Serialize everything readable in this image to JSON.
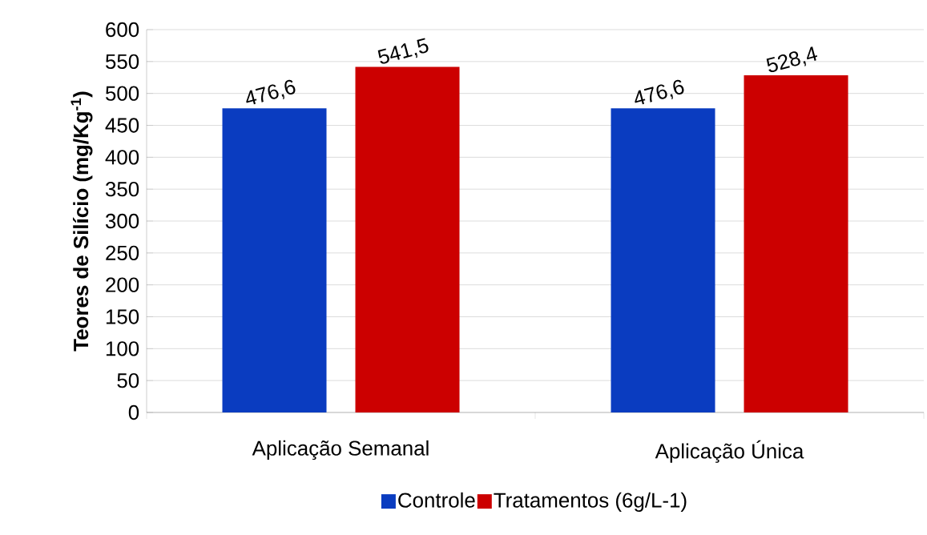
{
  "chart_data": {
    "type": "bar",
    "ylabel": "Teores de Silício (mg/Kg$^{-1}$)",
    "categories": [
      "Aplicação Semanal",
      "Aplicação Única"
    ],
    "series": [
      {
        "name": "Controle",
        "color": "#0a3cc0",
        "values": [
          476.6,
          476.6
        ],
        "value_labels": [
          "476,6",
          "476,6"
        ]
      },
      {
        "name": "Tratamentos (6g/L-1)",
        "color": "#cc0000",
        "values": [
          541.5,
          528.4
        ],
        "value_labels": [
          "541,5",
          "528,4"
        ]
      }
    ],
    "ylim": [
      0,
      600
    ],
    "yticks": [
      0,
      50,
      100,
      150,
      200,
      250,
      300,
      350,
      400,
      450,
      500,
      550,
      600
    ],
    "grid": "y",
    "legend": "bottom"
  }
}
